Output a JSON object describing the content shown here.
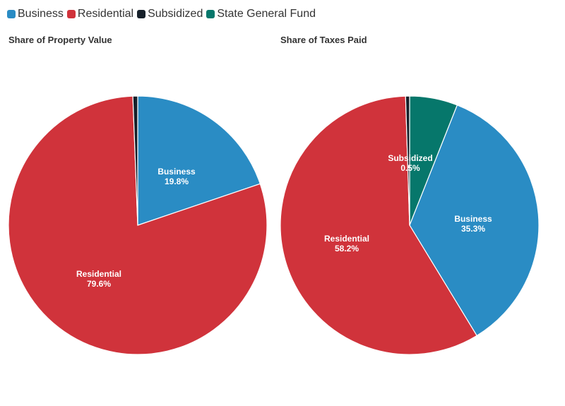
{
  "chart_data": [
    {
      "type": "pie",
      "title": "Share of Property Value",
      "slices": [
        {
          "name": "Business",
          "value": 19.8,
          "label": "Business",
          "value_label": "19.8%",
          "color": "#2a8cc4"
        },
        {
          "name": "Residential",
          "value": 79.6,
          "label": "Residential",
          "value_label": "79.6%",
          "color": "#d0333b"
        },
        {
          "name": "Subsidized",
          "value": 0.6,
          "color": "#16202a"
        }
      ]
    },
    {
      "type": "pie",
      "title": "Share of Taxes Paid",
      "slices": [
        {
          "name": "State General Fund",
          "value": 6.0,
          "color": "#06776b"
        },
        {
          "name": "Business",
          "value": 35.3,
          "label": "Business",
          "value_label": "35.3%",
          "color": "#2a8cc4"
        },
        {
          "name": "Residential",
          "value": 58.2,
          "label": "Residential",
          "value_label": "58.2%",
          "color": "#d0333b"
        },
        {
          "name": "Subsidized",
          "value": 0.5,
          "label": "Subsidized",
          "value_label": "0.5%",
          "color": "#16202a"
        }
      ]
    }
  ],
  "legend": [
    {
      "name": "Business",
      "color": "#2a8cc4"
    },
    {
      "name": "Residential",
      "color": "#d0333b"
    },
    {
      "name": "Subsidized",
      "color": "#16202a"
    },
    {
      "name": "State General Fund",
      "color": "#06776b"
    }
  ]
}
